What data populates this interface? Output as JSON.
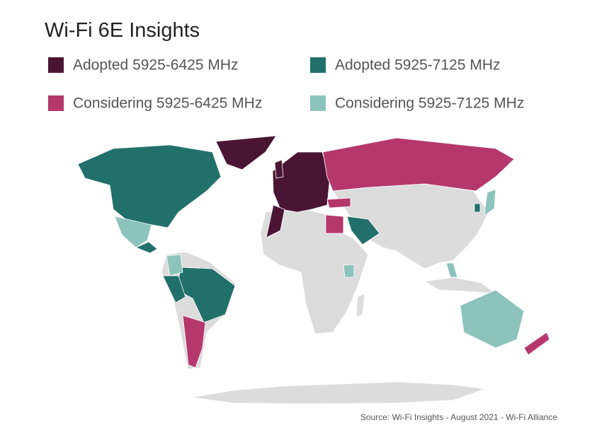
{
  "title": "Wi-Fi 6E Insights",
  "legend": {
    "items": [
      {
        "label": "Adopted 5925-6425 MHz",
        "color": "#4a1535"
      },
      {
        "label": "Adopted 5925-7125 MHz",
        "color": "#22706a"
      },
      {
        "label": "Considering 5925-6425 MHz",
        "color": "#b5386d"
      },
      {
        "label": "Considering 5925-7125 MHz",
        "color": "#8dc3bd"
      }
    ]
  },
  "source": "Source: Wi-Fi Insights - August 2021 - Wi-Fi Alliance"
}
